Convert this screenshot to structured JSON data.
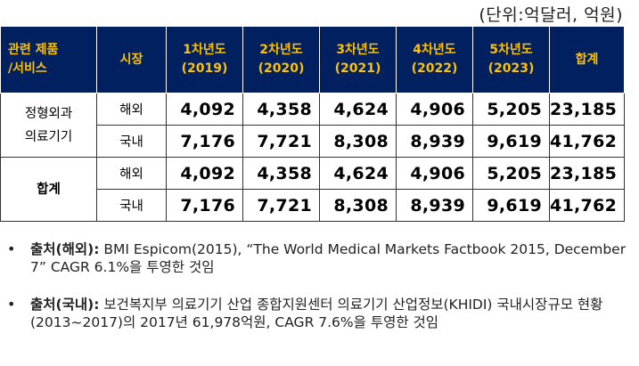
{
  "unit": "(단위:억달러, 억원)",
  "header": {
    "product_line1": "관련 제품",
    "product_line2": "/서비스",
    "market": "시장",
    "years": [
      {
        "label": "1차년도",
        "year": "(2019)"
      },
      {
        "label": "2차년도",
        "year": "(2020)"
      },
      {
        "label": "3차년도",
        "year": "(2021)"
      },
      {
        "label": "4차년도",
        "year": "(2022)"
      },
      {
        "label": "5차년도",
        "year": "(2023)"
      }
    ],
    "total": "합계"
  },
  "groups": [
    {
      "product_line1": "정형외과",
      "product_line2": "의료기기",
      "rows": [
        {
          "market": "해외",
          "values": [
            "4,092",
            "4,358",
            "4,624",
            "4,906",
            "5,205"
          ],
          "total": "23,185"
        },
        {
          "market": "국내",
          "values": [
            "7,176",
            "7,721",
            "8,308",
            "8,939",
            "9,619"
          ],
          "total": "41,762"
        }
      ]
    },
    {
      "product": "합계",
      "rows": [
        {
          "market": "해외",
          "values": [
            "4,092",
            "4,358",
            "4,624",
            "4,906",
            "5,205"
          ],
          "total": "23,185"
        },
        {
          "market": "국내",
          "values": [
            "7,176",
            "7,721",
            "8,308",
            "8,939",
            "9,619"
          ],
          "total": "41,762"
        }
      ]
    }
  ],
  "notes": [
    {
      "bullet": "•",
      "label": "출처(해외):",
      "text": " BMI Espicom(2015), “The World Medical Markets Factbook 2015, December 7” CAGR 6.1%을 투영한 것임"
    },
    {
      "bullet": "•",
      "label": "출처(국내):",
      "text": " 보건복지부 의료기기 산업 종합지원센터 의료기기 산업정보(KHIDI) 국내시장규모 현황(2013~2017)의 2017년 61,978억원, CAGR 7.6%을 투영한 것임"
    }
  ]
}
